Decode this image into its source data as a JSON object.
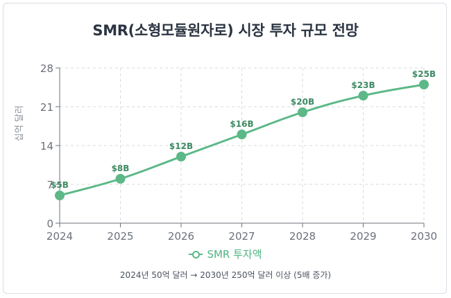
{
  "chart_data": {
    "type": "line",
    "title": "SMR(소형모듈원자로) 시장 투자 규모 전망",
    "ylabel": "십억 달러",
    "xlabel": "",
    "categories": [
      "2024",
      "2025",
      "2026",
      "2027",
      "2028",
      "2029",
      "2030"
    ],
    "series": [
      {
        "name": "SMR 투자액",
        "values": [
          5,
          8,
          12,
          16,
          20,
          23,
          25
        ],
        "data_labels": [
          "$5B",
          "$8B",
          "$12B",
          "$16B",
          "$20B",
          "$23B",
          "$25B"
        ],
        "color": "#5cb886",
        "label_color": "#3e8a63"
      }
    ],
    "ylim": [
      0,
      28
    ],
    "yticks": [
      "0",
      "7",
      "14",
      "21",
      "28"
    ],
    "grid": true,
    "legend_position": "bottom"
  },
  "note": "2024년 50억 달러 → 2030년 250억 달러 이상 (5배 증가)"
}
